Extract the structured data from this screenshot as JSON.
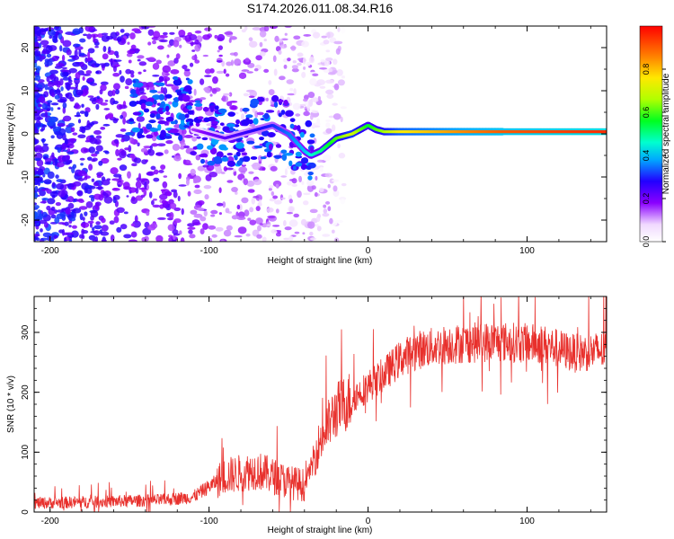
{
  "title": "S174.2026.011.08.34.R16",
  "colors": {
    "snr_line": "#e8302c",
    "axis": "#000000"
  },
  "chart_data": [
    {
      "type": "heatmap",
      "name": "spectrogram",
      "xlabel": "Height of straight line (km)",
      "ylabel": "Frequency (Hz)",
      "xlim": [
        -210,
        150
      ],
      "ylim": [
        -25,
        25
      ],
      "xticks": [
        -200,
        -100,
        0,
        100
      ],
      "xtick_labels": [
        "-200",
        "-100",
        "0",
        "100"
      ],
      "yticks": [
        -20,
        -10,
        0,
        10,
        20
      ],
      "ytick_labels": [
        "-20",
        "-10",
        "0",
        "10",
        "20"
      ],
      "colorbar": {
        "label": "Normalized spectral amplitude",
        "range": [
          0,
          1
        ],
        "ticks": [
          0,
          0.2,
          0.4,
          0.6,
          0.8
        ],
        "tick_labels": [
          "0.0",
          "0.2",
          "0.4",
          "0.6",
          "0.8"
        ]
      },
      "ridge": {
        "x": [
          -110,
          -100,
          -90,
          -80,
          -70,
          -60,
          -50,
          -40,
          -36,
          -30,
          -20,
          -10,
          0,
          5,
          10,
          20,
          40,
          60,
          85,
          150
        ],
        "freq": [
          1,
          0,
          -1,
          0,
          1,
          2,
          0,
          -4,
          -5,
          -4,
          -1,
          0,
          2,
          1,
          0.5,
          0.5,
          0.5,
          0.5,
          0.5,
          0.5
        ],
        "amp": [
          0.15,
          0.2,
          0.22,
          0.25,
          0.28,
          0.3,
          0.35,
          0.4,
          0.45,
          0.5,
          0.6,
          0.7,
          0.55,
          0.6,
          0.65,
          0.75,
          0.8,
          0.85,
          0.9,
          0.95
        ]
      }
    },
    {
      "type": "line",
      "name": "snr",
      "xlabel": "Height of straight line (km)",
      "ylabel": "SNR (10 * v/v)",
      "xlim": [
        -210,
        150
      ],
      "ylim": [
        0,
        360
      ],
      "xticks": [
        -200,
        -100,
        0,
        100
      ],
      "xtick_labels": [
        "-200",
        "-100",
        "0",
        "100"
      ],
      "yticks": [
        0,
        100,
        200,
        300
      ],
      "ytick_labels": [
        "0",
        "100",
        "200",
        "300"
      ],
      "trend": {
        "x": [
          -210,
          -170,
          -130,
          -110,
          -90,
          -70,
          -50,
          -40,
          -30,
          -20,
          -10,
          0,
          10,
          20,
          30,
          50,
          80,
          110,
          130,
          150
        ],
        "y": [
          15,
          17,
          20,
          25,
          60,
          70,
          50,
          45,
          120,
          170,
          190,
          210,
          230,
          255,
          270,
          280,
          285,
          280,
          265,
          270
        ]
      },
      "noise_amplitude": 25
    }
  ]
}
